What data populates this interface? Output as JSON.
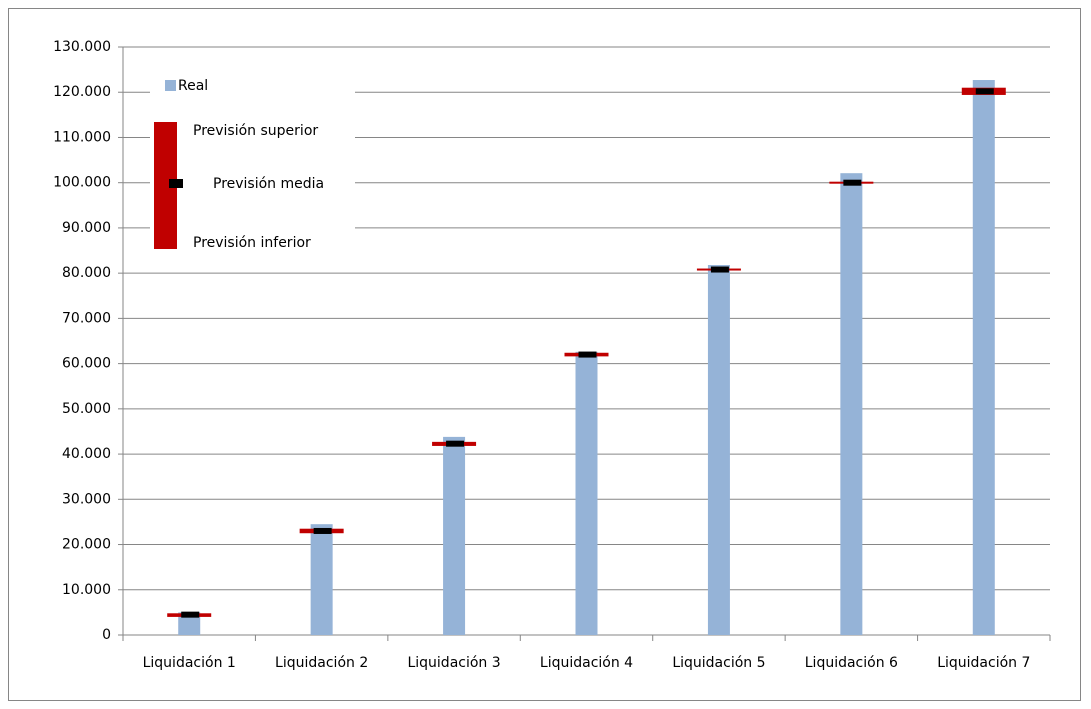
{
  "chart_data": {
    "type": "bar",
    "categories": [
      "Liquidación 1",
      "Liquidación 2",
      "Liquidación 3",
      "Liquidación 4",
      "Liquidación 5",
      "Liquidación 6",
      "Liquidación 7"
    ],
    "series": [
      {
        "name": "Real",
        "color": "#95b3d7",
        "values": [
          5000,
          24500,
          43800,
          62600,
          81800,
          102100,
          122700
        ]
      },
      {
        "name": "Previsión superior",
        "color": "#c00000",
        "values": [
          4800,
          23500,
          42700,
          62400,
          81000,
          100100,
          121000
        ]
      },
      {
        "name": "Previsión media",
        "color": "#000000",
        "values": [
          4500,
          23000,
          42300,
          62000,
          80800,
          100000,
          120200
        ]
      },
      {
        "name": "Previsión inferior",
        "color": "#c00000",
        "values": [
          4000,
          22500,
          41800,
          61600,
          80600,
          99900,
          119400
        ]
      }
    ],
    "ylim": [
      0,
      130000
    ],
    "yticks": [
      0,
      {
        "value": 10000,
        "label": "10.000"
      },
      {
        "value": 20000,
        "label": "20.000"
      },
      {
        "value": 30000,
        "label": "30.000"
      },
      {
        "value": 40000,
        "label": "40.000"
      },
      {
        "value": 50000,
        "label": "50.000"
      },
      {
        "value": 60000,
        "label": "60.000"
      },
      {
        "value": 70000,
        "label": "70.000"
      },
      {
        "value": 80000,
        "label": "80.000"
      },
      {
        "value": 90000,
        "label": "90.000"
      },
      {
        "value": 100000,
        "label": "100.000"
      },
      {
        "value": 110000,
        "label": "110.000"
      },
      {
        "value": 120000,
        "label": "120.000"
      },
      {
        "value": 130000,
        "label": "130.000"
      }
    ],
    "grid": true
  }
}
